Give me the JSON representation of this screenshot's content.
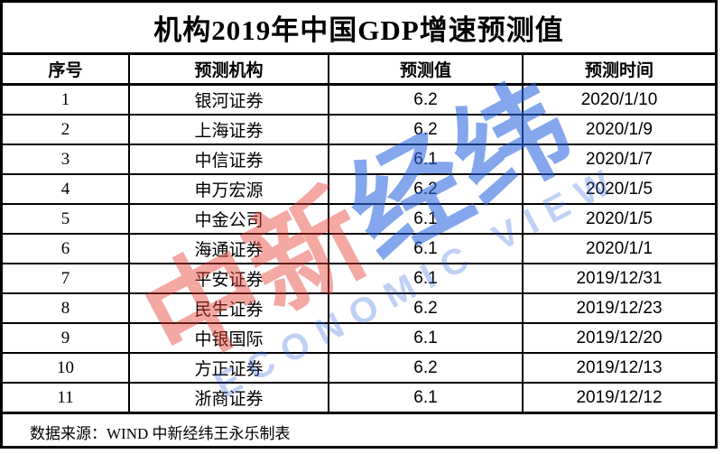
{
  "title": "机构2019年中国GDP增速预测值",
  "table": {
    "columns": [
      "序号",
      "预测机构",
      "预测值",
      "预测时间"
    ],
    "rows": [
      [
        "1",
        "银河证券",
        "6.2",
        "2020/1/10"
      ],
      [
        "2",
        "上海证券",
        "6.2",
        "2020/1/9"
      ],
      [
        "3",
        "中信证券",
        "6.1",
        "2020/1/7"
      ],
      [
        "4",
        "申万宏源",
        "6.2",
        "2020/1/5"
      ],
      [
        "5",
        "中金公司",
        "6.1",
        "2020/1/5"
      ],
      [
        "6",
        "海通证券",
        "6.1",
        "2020/1/1"
      ],
      [
        "7",
        "平安证券",
        "6.1",
        "2019/12/31"
      ],
      [
        "8",
        "民生证券",
        "6.2",
        "2019/12/23"
      ],
      [
        "9",
        "中银国际",
        "6.1",
        "2019/12/20"
      ],
      [
        "10",
        "方正证券",
        "6.2",
        "2019/12/13"
      ],
      [
        "11",
        "浙商证券",
        "6.1",
        "2019/12/12"
      ]
    ]
  },
  "footer": {
    "source_note": "数据来源：WIND 中新经纬王永乐制表"
  },
  "watermark": {
    "cjk_red": "中新",
    "cjk_blue": "经纬",
    "latin": "ECONOMIC VIEW",
    "colors": {
      "red": "#e63e32",
      "blue": "#2b65de"
    }
  }
}
